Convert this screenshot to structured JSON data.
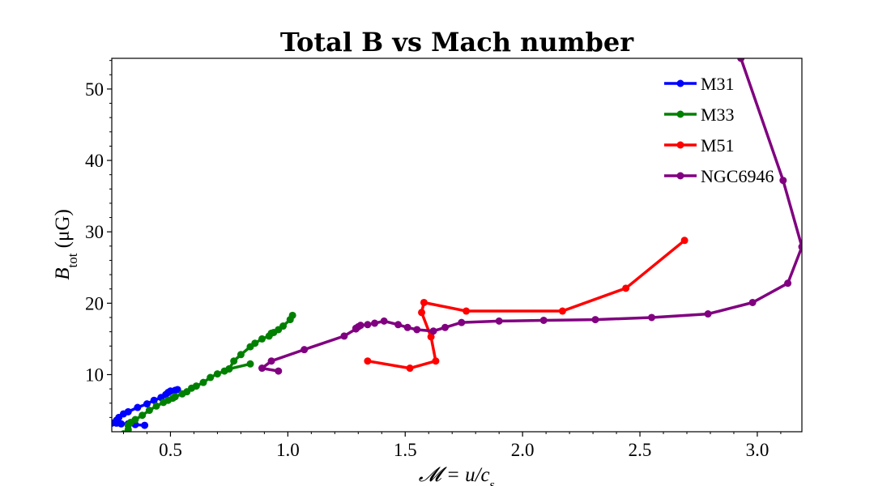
{
  "chart_data": {
    "type": "line",
    "title": "Total B vs Mach number",
    "xlabel": "𝓜 = u/c",
    "xlabel_sub": "s",
    "ylabel": "B",
    "ylabel_sub": "tot",
    "ylabel_unit": " (μG)",
    "xlim": [
      0.25,
      3.19
    ],
    "ylim": [
      2,
      54.3
    ],
    "xticks": [
      0.5,
      1.0,
      1.5,
      2.0,
      2.5,
      3.0
    ],
    "xtick_labels": [
      "0.5",
      "1.0",
      "1.5",
      "2.0",
      "2.5",
      "3.0"
    ],
    "yticks": [
      10,
      20,
      30,
      40,
      50
    ],
    "ytick_labels": [
      "10",
      "20",
      "30",
      "40",
      "50"
    ],
    "legend_position": "top-right",
    "series": [
      {
        "name": "M31",
        "color": "#0000ff",
        "points": [
          [
            0.39,
            2.9
          ],
          [
            0.35,
            3.0
          ],
          [
            0.32,
            3.1
          ],
          [
            0.29,
            3.1
          ],
          [
            0.27,
            3.2
          ],
          [
            0.25,
            3.2
          ],
          [
            0.27,
            3.6
          ],
          [
            0.28,
            4.0
          ],
          [
            0.3,
            4.5
          ],
          [
            0.32,
            4.8
          ],
          [
            0.36,
            5.4
          ],
          [
            0.4,
            5.9
          ],
          [
            0.43,
            6.4
          ],
          [
            0.46,
            6.8
          ],
          [
            0.48,
            7.2
          ],
          [
            0.49,
            7.5
          ],
          [
            0.5,
            7.7
          ],
          [
            0.52,
            7.8
          ],
          [
            0.53,
            7.9
          ]
        ]
      },
      {
        "name": "M33",
        "color": "#008000",
        "points": [
          [
            0.3,
            1.7
          ],
          [
            0.32,
            2.3
          ],
          [
            0.32,
            2.9
          ],
          [
            0.33,
            3.3
          ],
          [
            0.35,
            3.7
          ],
          [
            0.38,
            4.3
          ],
          [
            0.41,
            5.0
          ],
          [
            0.44,
            5.6
          ],
          [
            0.47,
            6.1
          ],
          [
            0.49,
            6.4
          ],
          [
            0.51,
            6.7
          ],
          [
            0.52,
            6.9
          ],
          [
            0.55,
            7.3
          ],
          [
            0.57,
            7.6
          ],
          [
            0.59,
            8.1
          ],
          [
            0.61,
            8.4
          ],
          [
            0.64,
            8.9
          ],
          [
            0.67,
            9.6
          ],
          [
            0.7,
            10.1
          ],
          [
            0.73,
            10.5
          ],
          [
            0.75,
            10.8
          ],
          [
            0.84,
            11.5
          ],
          [
            0.75,
            10.8
          ],
          [
            0.77,
            11.9
          ],
          [
            0.8,
            12.8
          ],
          [
            0.84,
            13.9
          ],
          [
            0.86,
            14.4
          ],
          [
            0.89,
            15.0
          ],
          [
            0.92,
            15.4
          ],
          [
            0.93,
            15.8
          ],
          [
            0.94,
            15.9
          ],
          [
            0.96,
            16.3
          ],
          [
            0.98,
            16.8
          ],
          [
            1.01,
            17.7
          ],
          [
            1.02,
            18.3
          ]
        ]
      },
      {
        "name": "M51",
        "color": "#ff0000",
        "points": [
          [
            1.34,
            11.9
          ],
          [
            1.52,
            10.9
          ],
          [
            1.63,
            11.9
          ],
          [
            1.61,
            15.3
          ],
          [
            1.57,
            18.7
          ],
          [
            1.58,
            20.1
          ],
          [
            1.76,
            18.9
          ],
          [
            2.17,
            18.9
          ],
          [
            2.44,
            22.1
          ],
          [
            2.69,
            28.8
          ]
        ]
      },
      {
        "name": "NGC6946",
        "color": "#800080",
        "points": [
          [
            0.96,
            10.5
          ],
          [
            0.89,
            10.9
          ],
          [
            0.93,
            11.9
          ],
          [
            1.07,
            13.5
          ],
          [
            1.24,
            15.4
          ],
          [
            1.29,
            16.4
          ],
          [
            1.3,
            16.7
          ],
          [
            1.29,
            16.5
          ],
          [
            1.31,
            16.9
          ],
          [
            1.34,
            17.0
          ],
          [
            1.37,
            17.2
          ],
          [
            1.41,
            17.5
          ],
          [
            1.47,
            17.0
          ],
          [
            1.51,
            16.6
          ],
          [
            1.55,
            16.3
          ],
          [
            1.62,
            16.1
          ],
          [
            1.67,
            16.6
          ],
          [
            1.74,
            17.3
          ],
          [
            1.9,
            17.5
          ],
          [
            2.09,
            17.6
          ],
          [
            2.31,
            17.7
          ],
          [
            2.55,
            18.0
          ],
          [
            2.79,
            18.5
          ],
          [
            2.98,
            20.1
          ],
          [
            3.13,
            22.8
          ],
          [
            3.19,
            27.9
          ],
          [
            3.11,
            37.2
          ],
          [
            2.93,
            54.3
          ]
        ]
      }
    ]
  }
}
